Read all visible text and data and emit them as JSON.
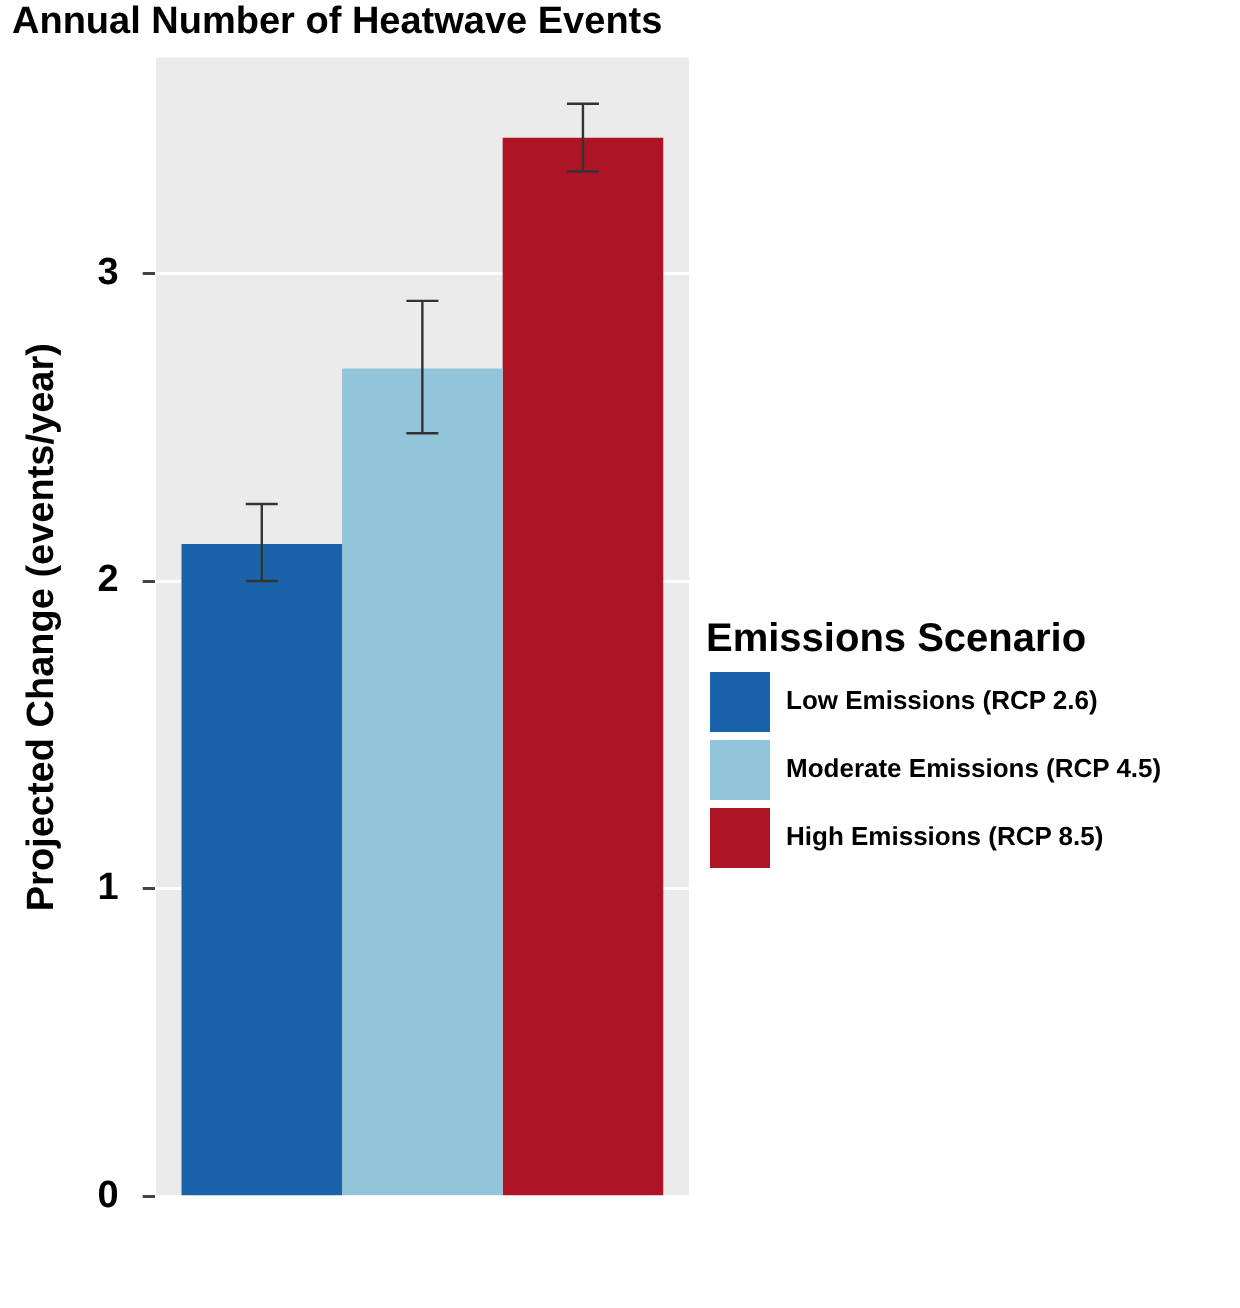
{
  "chart_data": {
    "type": "bar",
    "title": "Annual Number of Heatwave Events",
    "ylabel": "Projected Change (events/year)",
    "legend_title": "Emissions Scenario",
    "categories": [
      null
    ],
    "series": [
      {
        "name": "Low Emissions (RCP 2.6)",
        "color": "#1b63a8",
        "values": [
          2.12
        ],
        "errors": [
          [
            2.0,
            2.25
          ]
        ]
      },
      {
        "name": "Moderate Emissions (RCP 4.5)",
        "color": "#92c4da",
        "values": [
          2.69
        ],
        "errors": [
          [
            2.48,
            2.91
          ]
        ]
      },
      {
        "name": "High Emissions (RCP 8.5)",
        "color": "#ad1527",
        "values": [
          3.44
        ],
        "errors": [
          [
            3.33,
            3.55
          ]
        ]
      }
    ],
    "ylim": [
      0,
      3.7
    ],
    "yticks": [
      0,
      1,
      2,
      3
    ],
    "grid": true,
    "legend": "right"
  }
}
